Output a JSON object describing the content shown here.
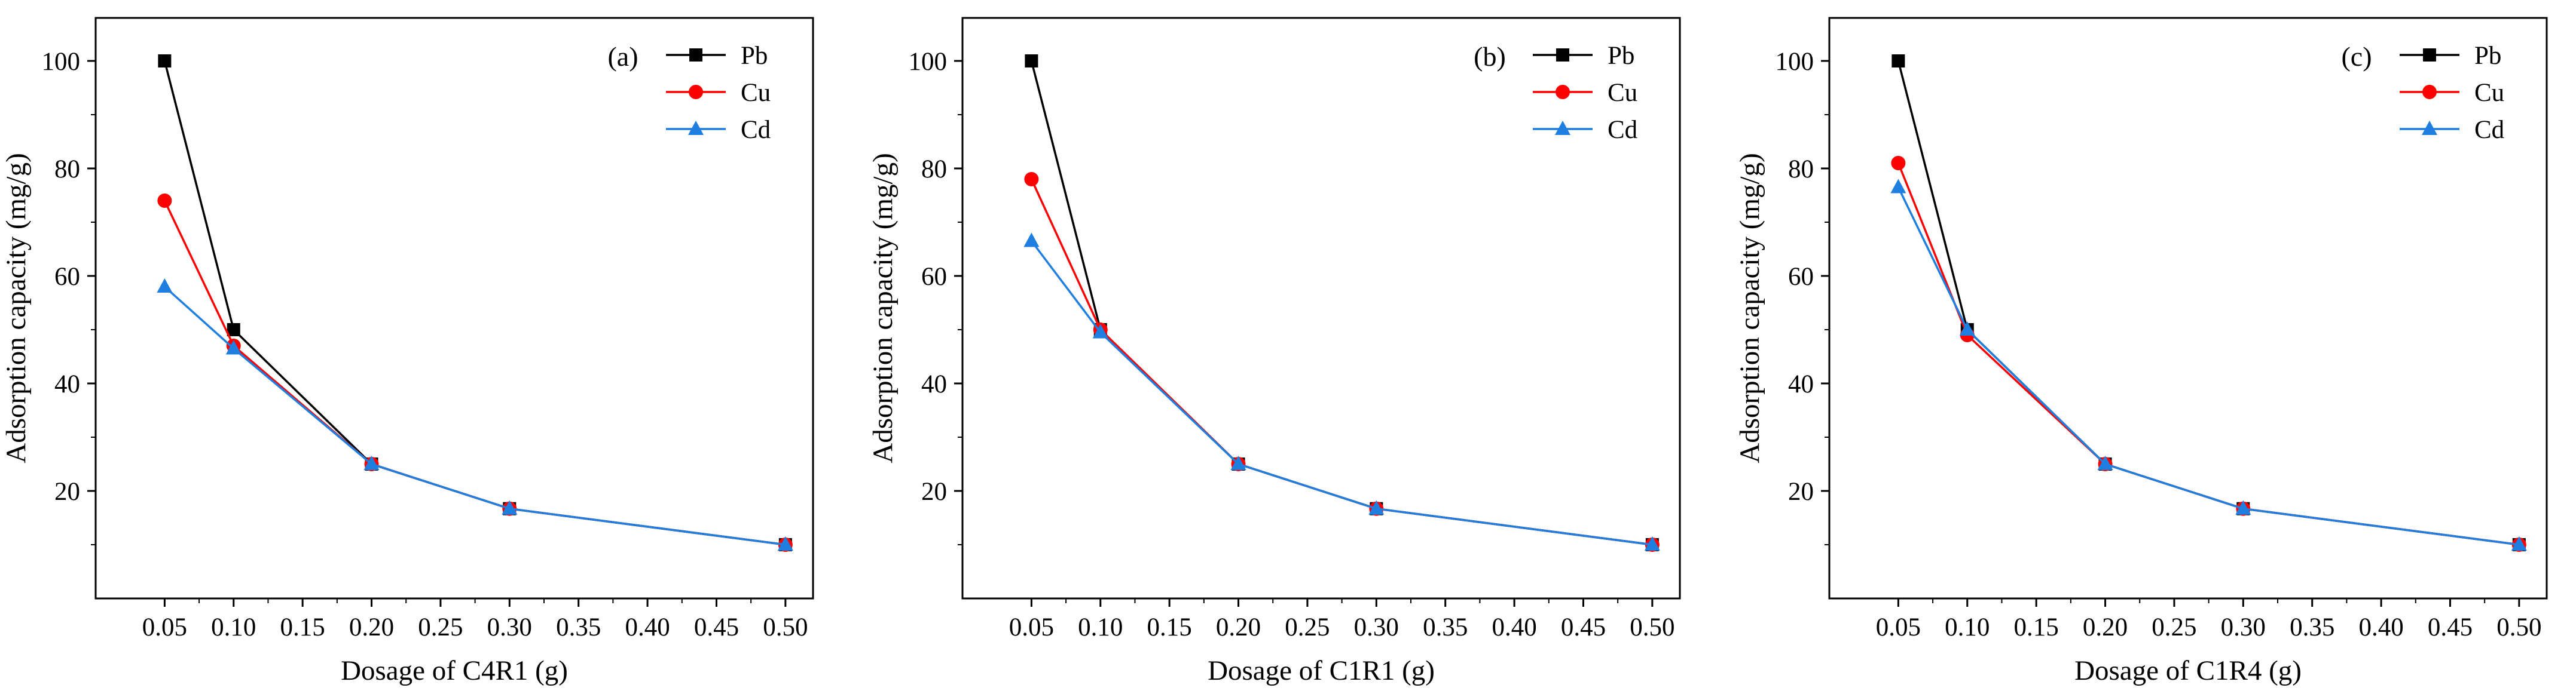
{
  "chart_data": [
    {
      "type": "line",
      "panel_label": "(a)",
      "xlabel": "Dosage of C4R1 (g)",
      "ylabel": "Adsorption capacity (mg/g)",
      "x": [
        0.05,
        0.1,
        0.2,
        0.3,
        0.5
      ],
      "xlim": [
        0.0,
        0.52
      ],
      "ylim": [
        0,
        108
      ],
      "xticks": [
        0.05,
        0.1,
        0.15,
        0.2,
        0.25,
        0.3,
        0.35,
        0.4,
        0.45,
        0.5
      ],
      "xtick_labels": [
        "0.05",
        "0.10",
        "0.15",
        "0.20",
        "0.25",
        "0.30",
        "0.35",
        "0.40",
        "0.45",
        "0.50"
      ],
      "yticks": [
        20,
        40,
        60,
        80,
        100
      ],
      "ytick_labels": [
        "20",
        "40",
        "60",
        "80",
        "100"
      ],
      "legend_position": "top-right",
      "series": [
        {
          "name": "Pb",
          "values": [
            100,
            50,
            25,
            16.7,
            10
          ],
          "color": "#000000",
          "marker": "square"
        },
        {
          "name": "Cu",
          "values": [
            74,
            47,
            25,
            16.7,
            10
          ],
          "color": "#ff0000",
          "marker": "circle"
        },
        {
          "name": "Cd",
          "values": [
            58,
            46.5,
            25,
            16.7,
            10
          ],
          "color": "#1e7fe0",
          "marker": "triangle"
        }
      ]
    },
    {
      "type": "line",
      "panel_label": "(b)",
      "xlabel": "Dosage of C1R1 (g)",
      "ylabel": "Adsorption capacity (mg/g)",
      "x": [
        0.05,
        0.1,
        0.2,
        0.3,
        0.5
      ],
      "xlim": [
        0.0,
        0.52
      ],
      "ylim": [
        0,
        108
      ],
      "xticks": [
        0.05,
        0.1,
        0.15,
        0.2,
        0.25,
        0.3,
        0.35,
        0.4,
        0.45,
        0.5
      ],
      "xtick_labels": [
        "0.05",
        "0.10",
        "0.15",
        "0.20",
        "0.25",
        "0.30",
        "0.35",
        "0.40",
        "0.45",
        "0.50"
      ],
      "yticks": [
        20,
        40,
        60,
        80,
        100
      ],
      "ytick_labels": [
        "20",
        "40",
        "60",
        "80",
        "100"
      ],
      "legend_position": "top-right",
      "series": [
        {
          "name": "Pb",
          "values": [
            100,
            50,
            25,
            16.7,
            10
          ],
          "color": "#000000",
          "marker": "square"
        },
        {
          "name": "Cu",
          "values": [
            78,
            50,
            25,
            16.7,
            10
          ],
          "color": "#ff0000",
          "marker": "circle"
        },
        {
          "name": "Cd",
          "values": [
            66.5,
            49.5,
            25,
            16.7,
            10
          ],
          "color": "#1e7fe0",
          "marker": "triangle"
        }
      ]
    },
    {
      "type": "line",
      "panel_label": "(c)",
      "xlabel": "Dosage of C1R4 (g)",
      "ylabel": "Adsorption capacity (mg/g)",
      "x": [
        0.05,
        0.1,
        0.2,
        0.3,
        0.5
      ],
      "xlim": [
        0.0,
        0.52
      ],
      "ylim": [
        0,
        108
      ],
      "xticks": [
        0.05,
        0.1,
        0.15,
        0.2,
        0.25,
        0.3,
        0.35,
        0.4,
        0.45,
        0.5
      ],
      "xtick_labels": [
        "0.05",
        "0.10",
        "0.15",
        "0.20",
        "0.25",
        "0.30",
        "0.35",
        "0.40",
        "0.45",
        "0.50"
      ],
      "yticks": [
        20,
        40,
        60,
        80,
        100
      ],
      "ytick_labels": [
        "20",
        "40",
        "60",
        "80",
        "100"
      ],
      "legend_position": "top-right",
      "series": [
        {
          "name": "Pb",
          "values": [
            100,
            50,
            25,
            16.7,
            10
          ],
          "color": "#000000",
          "marker": "square"
        },
        {
          "name": "Cu",
          "values": [
            81,
            49,
            25,
            16.7,
            10
          ],
          "color": "#ff0000",
          "marker": "circle"
        },
        {
          "name": "Cd",
          "values": [
            76.5,
            50,
            25,
            16.7,
            10
          ],
          "color": "#1e7fe0",
          "marker": "triangle"
        }
      ]
    }
  ]
}
